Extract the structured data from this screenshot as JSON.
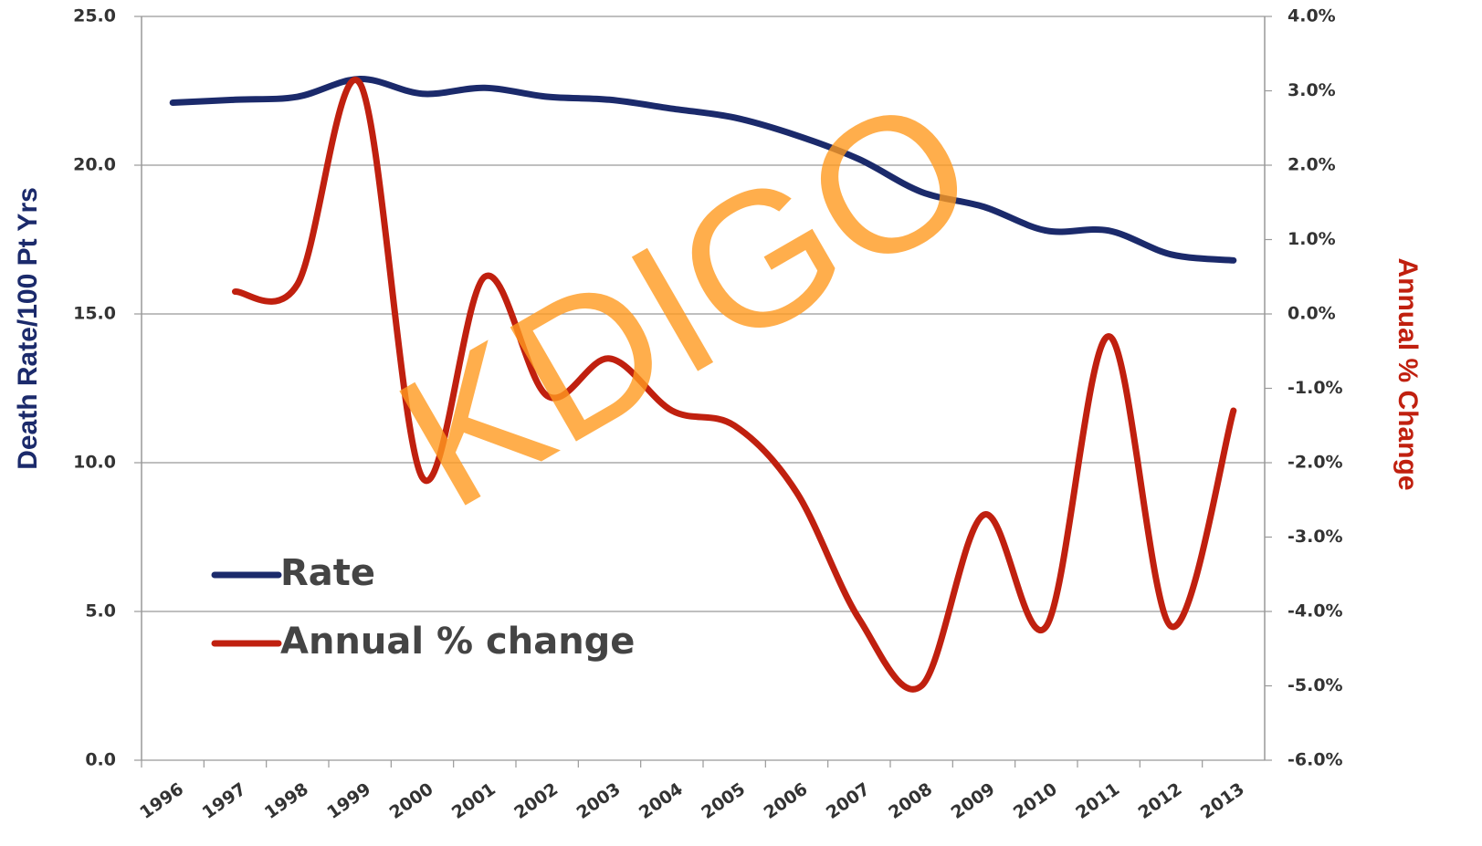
{
  "chart_data": {
    "type": "line",
    "y_label": "Death Rate/100 Pt Yrs",
    "y2_label": "Annual % Change",
    "annotation": "KDIGO",
    "categories": [
      "1996",
      "1997",
      "1998",
      "1999",
      "2000",
      "2001",
      "2002",
      "2003",
      "2004",
      "2005",
      "2006",
      "2007",
      "2008",
      "2009",
      "2010",
      "2011",
      "2012",
      "2013"
    ],
    "series": [
      {
        "name": "Rate",
        "color": "#1b2a6b",
        "values": [
          22.1,
          22.2,
          22.3,
          22.9,
          22.4,
          22.6,
          22.3,
          22.2,
          21.9,
          21.6,
          21.0,
          20.2,
          19.1,
          18.6,
          17.8,
          17.8,
          17.0,
          16.8
        ]
      },
      {
        "name": "Annual % change",
        "color": "#c0200f",
        "axis": "y2",
        "values": [
          null,
          0.3,
          0.4,
          3.1,
          -2.2,
          0.5,
          -1.1,
          -0.6,
          -1.3,
          -1.5,
          -2.4,
          -4.1,
          -5.0,
          -2.7,
          -4.2,
          -0.3,
          -4.2,
          -1.3
        ]
      }
    ],
    "ylim": [
      0,
      25
    ],
    "yticks": [
      {
        "value": 0,
        "label": "0.0"
      },
      {
        "value": 5,
        "label": "5.0"
      },
      {
        "value": 10,
        "label": "10.0"
      },
      {
        "value": 15,
        "label": "15.0"
      },
      {
        "value": 20,
        "label": "20.0"
      },
      {
        "value": 25,
        "label": "25.0"
      }
    ],
    "y2lim": [
      -6,
      4
    ],
    "y2ticks": [
      {
        "value": -6,
        "label": "-6.0%"
      },
      {
        "value": -5,
        "label": "-5.0%"
      },
      {
        "value": -4,
        "label": "-4.0%"
      },
      {
        "value": -3,
        "label": "-3.0%"
      },
      {
        "value": -2,
        "label": "-2.0%"
      },
      {
        "value": -1,
        "label": "-1.0%"
      },
      {
        "value": 0,
        "label": "0.0%"
      },
      {
        "value": 1,
        "label": "1.0%"
      },
      {
        "value": 2,
        "label": "2.0%"
      },
      {
        "value": 3,
        "label": "3.0%"
      },
      {
        "value": 4,
        "label": "4.0%"
      }
    ],
    "grid": true,
    "smooth": true,
    "legend": "lower left"
  }
}
